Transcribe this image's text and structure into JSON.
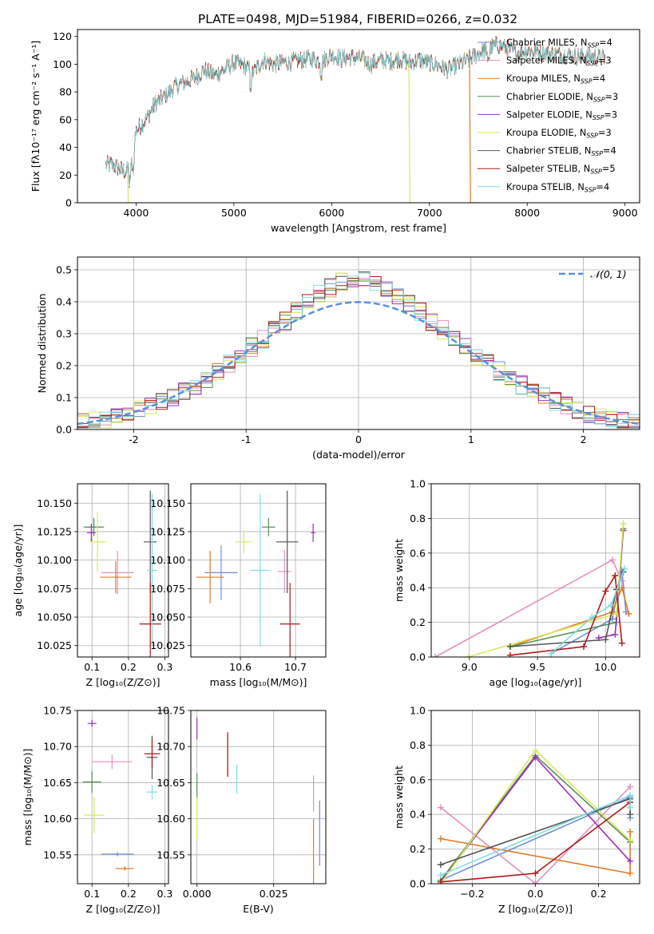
{
  "figure": {
    "title": "PLATE=0498, MJD=51984, FIBERID=0266, z=0.032"
  },
  "models": [
    {
      "label": "Chabrier MILES, N",
      "sub": "SSP",
      "suffix": "=4",
      "color": "#6d8fd6"
    },
    {
      "label": "Salpeter MILES, N",
      "sub": "SSP",
      "suffix": "=3",
      "color": "#e38fc0"
    },
    {
      "label": "Kroupa MILES, N",
      "sub": "SSP",
      "suffix": "=4",
      "color": "#e07a2a"
    },
    {
      "label": "Chabrier ELODIE, N",
      "sub": "SSP",
      "suffix": "=3",
      "color": "#5a8f5a"
    },
    {
      "label": "Salpeter ELODIE, N",
      "sub": "SSP",
      "suffix": "=3",
      "color": "#9b30b8"
    },
    {
      "label": "Kroupa ELODIE, N",
      "sub": "SSP",
      "suffix": "=3",
      "color": "#d8e85a"
    },
    {
      "label": "Chabrier STELIB, N",
      "sub": "SSP",
      "suffix": "=4",
      "color": "#555555"
    },
    {
      "label": "Salpeter STELIB, N",
      "sub": "SSP",
      "suffix": "=5",
      "color": "#b01818"
    },
    {
      "label": "Kroupa STELIB, N",
      "sub": "SSP",
      "suffix": "=4",
      "color": "#80dde0"
    }
  ],
  "chart_data": [
    {
      "id": "spectrum",
      "type": "line",
      "xlabel": "wavelength [Angstrom, rest frame]",
      "ylabel": "Flux [fλ10⁻¹⁷ erg cm⁻² s⁻¹ A⁻¹]",
      "xlim": [
        3400,
        9150
      ],
      "ylim": [
        0,
        125
      ],
      "xticks": [
        4000,
        5000,
        6000,
        7000,
        8000,
        9000
      ],
      "yticks": [
        0,
        20,
        40,
        60,
        80,
        100,
        120
      ],
      "envelope": {
        "x": [
          3690,
          3750,
          3820,
          3900,
          3950,
          4000,
          4100,
          4200,
          4300,
          4400,
          4500,
          4600,
          4700,
          4800,
          4900,
          5000,
          5100,
          5200,
          5300,
          5400,
          5500,
          5600,
          5700,
          5800,
          5900,
          6000,
          6100,
          6200,
          6300,
          6400,
          6500,
          6600,
          6700,
          6800,
          6900,
          7000,
          7100,
          7200,
          7300,
          7400,
          7500,
          7600,
          7700,
          7800,
          7900,
          8000,
          8100,
          8200,
          8300,
          8400,
          8500,
          8600,
          8700,
          8800
        ],
        "y": [
          27,
          28,
          25,
          22,
          30,
          52,
          60,
          72,
          77,
          84,
          87,
          90,
          96,
          92,
          96,
          101,
          99,
          94,
          103,
          100,
          101,
          102,
          103,
          104,
          102,
          107,
          104,
          105,
          104,
          100,
          103,
          102,
          104,
          101,
          103,
          101,
          99,
          96,
          100,
          103,
          108,
          111,
          114,
          111,
          108,
          110,
          109,
          108,
          107,
          107,
          106,
          106,
          105,
          104
        ]
      },
      "drops": [
        {
          "x": 3920,
          "color": "#d8e85a",
          "end": 3940
        },
        {
          "x": 6800,
          "color": "#d8e85a",
          "end": 6850
        },
        {
          "x": 7420,
          "color": "#e07a2a",
          "end": 7500
        }
      ]
    },
    {
      "id": "residuals",
      "type": "histogram",
      "xlabel": "(data-model)/error",
      "ylabel": "Normed distribution",
      "xlim": [
        -2.5,
        2.5
      ],
      "ylim": [
        0,
        0.54
      ],
      "xticks": [
        -2,
        -1,
        0,
        1,
        2
      ],
      "yticks": [
        0.0,
        0.1,
        0.2,
        0.3,
        0.4,
        0.5
      ],
      "yticklabels": [
        "0.0",
        "0.1",
        "0.2",
        "0.3",
        "0.4",
        "0.5"
      ],
      "legend": {
        "label": "𝒩(0, 1)",
        "color": "#5b8fdb",
        "position": "top-right"
      },
      "bin_start": -2.5,
      "bin_width": 0.1
    },
    {
      "id": "age-vs-Z",
      "type": "errorbar",
      "xlabel": "Z [log₁₀(Z/Z⊙)]",
      "ylabel": "age  [log₁₀(age/yr)]",
      "xlim": [
        0.06,
        0.31
      ],
      "ylim": [
        10.015,
        10.167
      ],
      "xticks": [
        0.1,
        0.2,
        0.3
      ],
      "xticklabels": [
        "0.1",
        "0.2",
        "0.3"
      ],
      "yticks": [
        10.025,
        10.05,
        10.075,
        10.1,
        10.125,
        10.15
      ],
      "yticklabels": [
        "10.025",
        "10.050",
        "10.075",
        "10.100",
        "10.125",
        "10.150"
      ],
      "points": [
        {
          "x": 0.105,
          "y": 10.129,
          "xerr": 0.02,
          "yerr": 0.006,
          "model": 0
        },
        {
          "x": 0.17,
          "y": 10.089,
          "xerr": 0.045,
          "yerr": 0.019,
          "model": 1
        },
        {
          "x": 0.165,
          "y": 10.085,
          "xerr": 0.043,
          "yerr": 0.014,
          "model": 2
        },
        {
          "x": 0.105,
          "y": 10.129,
          "xerr": 0.028,
          "yerr": 0.008,
          "model": 3
        },
        {
          "x": 0.098,
          "y": 10.124,
          "xerr": 0.012,
          "yerr": 0.008,
          "model": 4
        },
        {
          "x": 0.115,
          "y": 10.116,
          "xerr": 0.022,
          "yerr": 0.026,
          "model": 5
        },
        {
          "x": 0.26,
          "y": 10.116,
          "xerr": 0.018,
          "yerr": 0.045,
          "model": 6
        },
        {
          "x": 0.26,
          "y": 10.044,
          "xerr": 0.03,
          "yerr": 0.036,
          "model": 7
        },
        {
          "x": 0.265,
          "y": 10.091,
          "xerr": 0.014,
          "yerr": 0.067,
          "model": 8
        }
      ]
    },
    {
      "id": "age-vs-mass",
      "type": "errorbar",
      "xlabel": "mass [log₁₀(M/M⊙)]",
      "ylabel": "",
      "xlim": [
        10.51,
        10.755
      ],
      "ylim": [
        10.015,
        10.167
      ],
      "xticks": [
        10.6,
        10.7
      ],
      "xticklabels": [
        "10.6",
        "10.7"
      ],
      "yticks": [
        10.025,
        10.05,
        10.075,
        10.1,
        10.125,
        10.15
      ],
      "yticklabels": [
        "10.025",
        "10.050",
        "10.075",
        "10.100",
        "10.125",
        "10.150"
      ],
      "points": [
        {
          "x": 10.565,
          "y": 10.089,
          "xerr": 0.03,
          "yerr": 0.024,
          "model": 0
        },
        {
          "x": 10.68,
          "y": 10.09,
          "xerr": 0.012,
          "yerr": 0.019,
          "model": 1
        },
        {
          "x": 10.545,
          "y": 10.085,
          "xerr": 0.025,
          "yerr": 0.023,
          "model": 2
        },
        {
          "x": 10.651,
          "y": 10.129,
          "xerr": 0.012,
          "yerr": 0.008,
          "model": 3
        },
        {
          "x": 10.732,
          "y": 10.124,
          "xerr": 0.004,
          "yerr": 0.008,
          "model": 4
        },
        {
          "x": 10.606,
          "y": 10.116,
          "xerr": 0.015,
          "yerr": 0.01,
          "model": 5
        },
        {
          "x": 10.685,
          "y": 10.116,
          "xerr": 0.02,
          "yerr": 0.045,
          "model": 6
        },
        {
          "x": 10.69,
          "y": 10.044,
          "xerr": 0.018,
          "yerr": 0.036,
          "model": 7
        },
        {
          "x": 10.636,
          "y": 10.091,
          "xerr": 0.018,
          "yerr": 0.067,
          "model": 8
        }
      ]
    },
    {
      "id": "mass-weight-vs-age",
      "type": "line",
      "xlabel": "age  [log₁₀(age/yr)]",
      "ylabel": "mass weight",
      "xlim": [
        8.72,
        10.25
      ],
      "ylim": [
        0,
        1.0
      ],
      "xticks": [
        9.0,
        9.5,
        10.0
      ],
      "xticklabels": [
        "9.0",
        "9.5",
        "10.0"
      ],
      "yticks": [
        0,
        0.2,
        0.4,
        0.6,
        0.8,
        1.0
      ],
      "yticklabels": [
        "0.0",
        "0.2",
        "0.4",
        "0.6",
        "0.8",
        "1.0"
      ],
      "series": [
        {
          "model": 0,
          "x": [
            9.6,
            10.05,
            10.12,
            10.15
          ],
          "y": [
            0.02,
            0.22,
            0.5,
            0.26
          ]
        },
        {
          "model": 1,
          "x": [
            8.75,
            10.05,
            10.12
          ],
          "y": [
            0.0,
            0.56,
            0.44
          ]
        },
        {
          "model": 2,
          "x": [
            9.3,
            10.05,
            10.12,
            10.17
          ],
          "y": [
            0.06,
            0.26,
            0.4,
            0.25
          ]
        },
        {
          "model": 3,
          "x": [
            9.3,
            10.08,
            10.13
          ],
          "y": [
            0.06,
            0.2,
            0.74
          ]
        },
        {
          "model": 4,
          "x": [
            9.95,
            10.07,
            10.13
          ],
          "y": [
            0.11,
            0.13,
            0.73
          ]
        },
        {
          "model": 5,
          "x": [
            8.99,
            10.08,
            10.13
          ],
          "y": [
            0.0,
            0.25,
            0.77
          ]
        },
        {
          "model": 6,
          "x": [
            9.3,
            10.0,
            10.08,
            10.13
          ],
          "y": [
            0.06,
            0.1,
            0.39,
            0.49
          ]
        },
        {
          "model": 7,
          "x": [
            9.3,
            9.84,
            10.0,
            10.07,
            10.12
          ],
          "y": [
            0.01,
            0.06,
            0.38,
            0.47,
            0.08
          ]
        },
        {
          "model": 8,
          "x": [
            9.6,
            9.9,
            10.04,
            10.14
          ],
          "y": [
            0.02,
            0.23,
            0.3,
            0.51
          ]
        }
      ]
    },
    {
      "id": "mass-vs-Z",
      "type": "errorbar",
      "xlabel": "Z [log₁₀(Z/Z⊙)]",
      "ylabel": "mass [log₁₀(M/M⊙)]",
      "xlim": [
        0.06,
        0.31
      ],
      "ylim": [
        10.51,
        10.75
      ],
      "xticks": [
        0.1,
        0.2,
        0.3
      ],
      "xticklabels": [
        "0.1",
        "0.2",
        "0.3"
      ],
      "yticks": [
        10.55,
        10.6,
        10.65,
        10.7,
        10.75
      ],
      "yticklabels": [
        "10.55",
        "10.60",
        "10.65",
        "10.70",
        "10.75"
      ],
      "points": [
        {
          "x": 0.17,
          "y": 10.551,
          "xerr": 0.045,
          "yerr": 0.003,
          "model": 0
        },
        {
          "x": 0.155,
          "y": 10.679,
          "xerr": 0.055,
          "yerr": 0.01,
          "model": 1
        },
        {
          "x": 0.19,
          "y": 10.531,
          "xerr": 0.025,
          "yerr": 0.003,
          "model": 2
        },
        {
          "x": 0.1,
          "y": 10.651,
          "xerr": 0.025,
          "yerr": 0.015,
          "model": 3
        },
        {
          "x": 0.1,
          "y": 10.732,
          "xerr": 0.012,
          "yerr": 0.005,
          "model": 4
        },
        {
          "x": 0.106,
          "y": 10.605,
          "xerr": 0.027,
          "yerr": 0.025,
          "model": 5
        },
        {
          "x": 0.265,
          "y": 10.685,
          "xerr": 0.015,
          "yerr": 0.03,
          "model": 6
        },
        {
          "x": 0.265,
          "y": 10.69,
          "xerr": 0.022,
          "yerr": 0.02,
          "model": 7
        },
        {
          "x": 0.265,
          "y": 10.637,
          "xerr": 0.015,
          "yerr": 0.01,
          "model": 8
        }
      ]
    },
    {
      "id": "mass-vs-EBV",
      "type": "errorbar",
      "xlabel": "E(B-V)",
      "ylabel": "",
      "xlim": [
        -0.002,
        0.042
      ],
      "ylim": [
        10.51,
        10.75
      ],
      "xticks": [
        0.0,
        0.025
      ],
      "xticklabels": [
        "0.000",
        "0.025"
      ],
      "yticks": [
        10.55,
        10.6,
        10.65,
        10.7,
        10.75
      ],
      "yticklabels": [
        "10.55",
        "10.60",
        "10.65",
        "10.70",
        "10.75"
      ],
      "points": [
        {
          "x": 0.04,
          "y": 10.58,
          "xerr": 0,
          "yerr": 0.045,
          "model": 0
        },
        {
          "x": 0.038,
          "y": 10.635,
          "xerr": 0,
          "yerr": 0.025,
          "model": 1
        },
        {
          "x": 0.038,
          "y": 10.555,
          "xerr": 0,
          "yerr": 0.045,
          "model": 2
        },
        {
          "x": 0.0,
          "y": 10.645,
          "xerr": 0,
          "yerr": 0.018,
          "model": 3
        },
        {
          "x": 0.0,
          "y": 10.725,
          "xerr": 0,
          "yerr": 0.015,
          "model": 4
        },
        {
          "x": 0.0,
          "y": 10.6,
          "xerr": 0,
          "yerr": 0.03,
          "model": 5
        },
        {
          "x": 0.01,
          "y": 10.69,
          "xerr": 0,
          "yerr": 0.03,
          "model": 6
        },
        {
          "x": 0.01,
          "y": 10.688,
          "xerr": 0,
          "yerr": 0.03,
          "model": 7
        },
        {
          "x": 0.013,
          "y": 10.655,
          "xerr": 0,
          "yerr": 0.02,
          "model": 8
        }
      ]
    },
    {
      "id": "mass-weight-vs-Z",
      "type": "line",
      "xlabel": "Z [log₁₀(Z/Z⊙)]",
      "ylabel": "mass weight",
      "xlim": [
        -0.33,
        0.33
      ],
      "ylim": [
        0,
        1.0
      ],
      "xticks": [
        -0.2,
        0.0,
        0.2
      ],
      "xticklabels": [
        "−0.2",
        "0.0",
        "0.2"
      ],
      "yticks": [
        0,
        0.2,
        0.4,
        0.6,
        0.8,
        1.0
      ],
      "yticklabels": [
        "0.0",
        "0.2",
        "0.4",
        "0.6",
        "0.8",
        "1.0"
      ],
      "series": [
        {
          "model": 0,
          "x": [
            -0.3,
            0.3,
            0.3
          ],
          "y": [
            0.02,
            0.5,
            0.38
          ]
        },
        {
          "model": 1,
          "x": [
            -0.3,
            0.0,
            0.3
          ],
          "y": [
            0.44,
            0.0,
            0.56
          ]
        },
        {
          "model": 2,
          "x": [
            -0.3,
            0.3,
            0.3
          ],
          "y": [
            0.26,
            0.06,
            0.3
          ]
        },
        {
          "model": 3,
          "x": [
            -0.3,
            0.0,
            0.3
          ],
          "y": [
            0.02,
            0.74,
            0.24
          ]
        },
        {
          "model": 4,
          "x": [
            -0.3,
            0.0,
            0.3
          ],
          "y": [
            0.01,
            0.73,
            0.13
          ]
        },
        {
          "model": 5,
          "x": [
            -0.3,
            0.0,
            0.3
          ],
          "y": [
            0.0,
            0.77,
            0.25
          ]
        },
        {
          "model": 6,
          "x": [
            -0.3,
            0.3,
            0.3
          ],
          "y": [
            0.11,
            0.49,
            0.4
          ]
        },
        {
          "model": 7,
          "x": [
            -0.3,
            0.0,
            0.3
          ],
          "y": [
            0.01,
            0.06,
            0.47
          ]
        },
        {
          "model": 8,
          "x": [
            -0.3,
            0.3,
            0.3
          ],
          "y": [
            0.05,
            0.51,
            0.44
          ]
        }
      ]
    }
  ]
}
